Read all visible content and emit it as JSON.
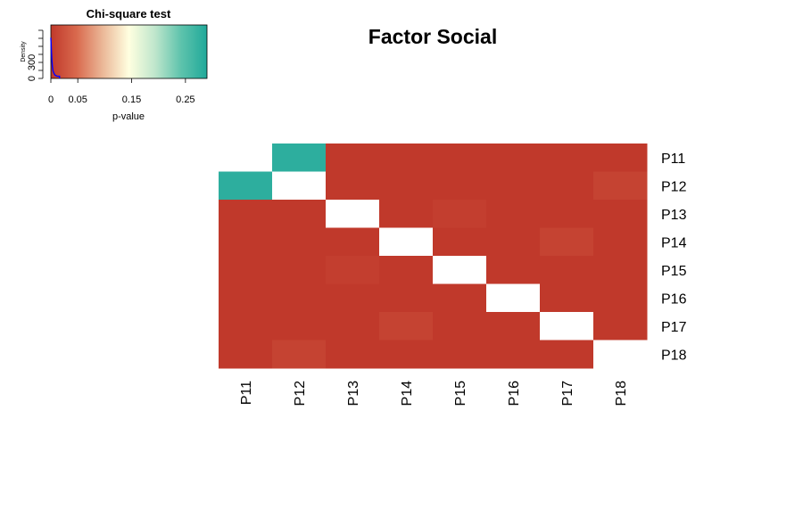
{
  "chart_data": [
    {
      "type": "heatmap",
      "title": "Factor Social",
      "rows": [
        "P11",
        "P12",
        "P13",
        "P14",
        "P15",
        "P16",
        "P17",
        "P18"
      ],
      "columns": [
        "P11",
        "P12",
        "P13",
        "P14",
        "P15",
        "P16",
        "P17",
        "P18"
      ],
      "values": [
        [
          0,
          0.28,
          0,
          0,
          0,
          0,
          0,
          0
        ],
        [
          0.28,
          null,
          0,
          0,
          0,
          0,
          0,
          0.01
        ],
        [
          0,
          0,
          null,
          0,
          0.005,
          0,
          0,
          0
        ],
        [
          0,
          0,
          0,
          null,
          0,
          0,
          0.01,
          0
        ],
        [
          0,
          0,
          0.005,
          0,
          null,
          0,
          0,
          0
        ],
        [
          0,
          0,
          0,
          0,
          0,
          null,
          0,
          0
        ],
        [
          0,
          0,
          0,
          0.01,
          0,
          0,
          null,
          0
        ],
        [
          0,
          0.01,
          0,
          0,
          0,
          0,
          0,
          null
        ]
      ],
      "color_scale": {
        "name": "p-value",
        "min": 0,
        "max": 0.29,
        "stops": [
          "#C0392B",
          "#D96A4E",
          "#EBB898",
          "#FFFFE0",
          "#BFE6CC",
          "#5EC3AC",
          "#20A99A"
        ]
      },
      "missing_color": "#ffffff"
    },
    {
      "type": "area",
      "title": "Chi-square test",
      "xlabel": "p-value",
      "ylabel": "Density",
      "x_ticks": [
        0,
        0.05,
        0.15,
        0.25
      ],
      "x_tick_labels": [
        "0",
        "0.05",
        "0.15",
        "0.25"
      ],
      "y_ticks": [
        0,
        300
      ],
      "y_tick_labels": [
        "0",
        "300"
      ],
      "xlim": [
        0,
        0.29
      ],
      "ylim": [
        0,
        1000
      ],
      "density_x": [
        0,
        0.001,
        0.002,
        0.003,
        0.004,
        0.006,
        0.008,
        0.012,
        0.016
      ],
      "density_y": [
        760,
        520,
        330,
        210,
        140,
        90,
        60,
        40,
        40
      ],
      "line_color": "#0000ff"
    }
  ]
}
